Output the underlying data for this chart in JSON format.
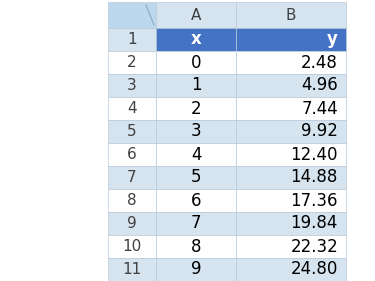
{
  "x_values": [
    "x",
    0,
    1,
    2,
    3,
    4,
    5,
    6,
    7,
    8,
    9
  ],
  "y_values": [
    "y",
    2.48,
    4.96,
    7.44,
    9.92,
    12.4,
    14.88,
    17.36,
    19.84,
    22.32,
    24.8
  ],
  "n_rows": 11,
  "header_bg": "#4472C4",
  "header_text_color": "#FFFFFF",
  "col_header_bg": "#D6E4F0",
  "even_row_bg": "#D6E4F0",
  "odd_row_bg": "#FFFFFF",
  "grid_color": "#B8C9D9",
  "row_number_color": "#404040",
  "corner_bg": "#BDD7EE",
  "data_text_color": "#000000",
  "col_header_text_color": "#404040",
  "fig_bg": "#FFFFFF",
  "col_header_fontsize": 11,
  "data_fontsize": 12,
  "row_num_fontsize": 11
}
